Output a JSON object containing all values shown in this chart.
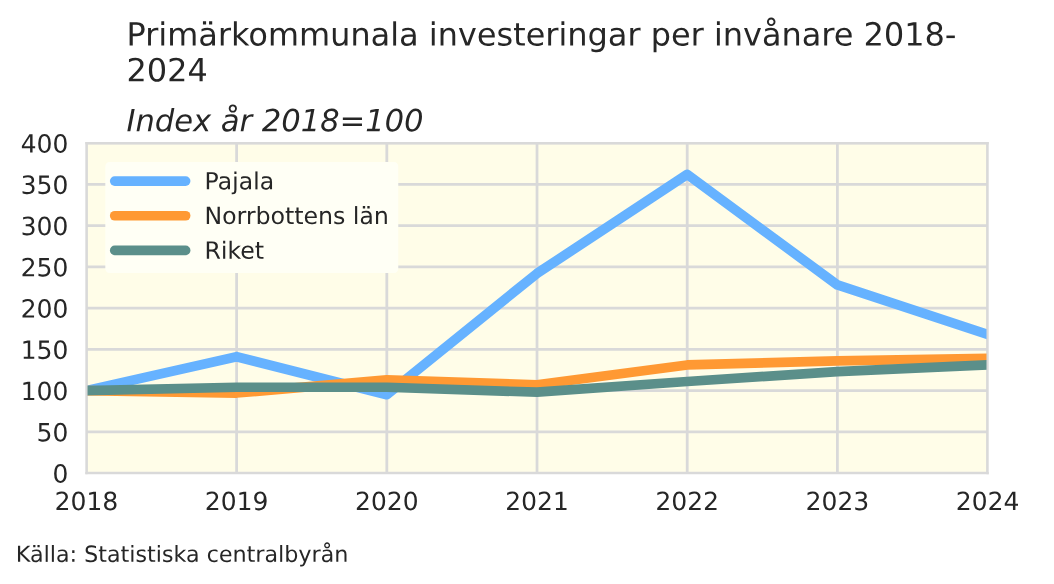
{
  "chart_data": {
    "type": "line",
    "title": "Primärkommunala investeringar per invånare 2018-\n2024",
    "subtitle": "Index år 2018=100",
    "x": [
      2018,
      2019,
      2020,
      2021,
      2022,
      2023,
      2024
    ],
    "series": [
      {
        "name": "Pajala",
        "color": "#66b2ff",
        "values": [
          100,
          141,
          95,
          242,
          362,
          228,
          168
        ]
      },
      {
        "name": "Norrbottens län",
        "color": "#ff9933",
        "values": [
          100,
          97,
          113,
          107,
          131,
          136,
          139
        ]
      },
      {
        "name": "Riket",
        "color": "#5b8f8a",
        "values": [
          100,
          104,
          104,
          98,
          111,
          123,
          131
        ]
      }
    ],
    "xlim": [
      2018,
      2024
    ],
    "xticks": [
      2018,
      2019,
      2020,
      2021,
      2022,
      2023,
      2024
    ],
    "ylim": [
      0,
      400
    ],
    "yticks": [
      0,
      50,
      100,
      150,
      200,
      250,
      300,
      350,
      400
    ],
    "grid": true,
    "legend": "top left",
    "line_style": "solid",
    "annotations": [
      "Källa: Statistiska centralbyrån"
    ]
  }
}
